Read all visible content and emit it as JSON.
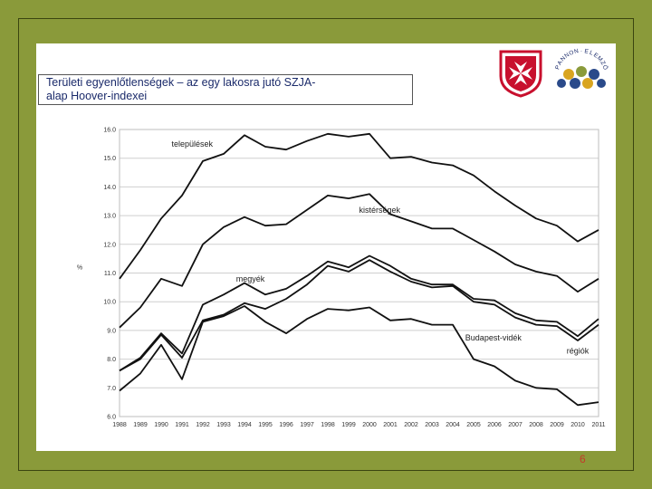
{
  "slide": {
    "title_line1": "Területi egyenlőtlenségek – az egy lakosra jutó SZJA-",
    "title_line2": "alap Hoover-indexei",
    "page_number": "6",
    "logo_arc_text": "PANNON·ELEMZŐ",
    "logo_arc_letters": [
      "P",
      "A",
      "N",
      "N",
      "O",
      "N",
      "·",
      "E",
      "L",
      "E",
      "M",
      "Z",
      "Ő"
    ],
    "colors": {
      "background": "#8a9a3a",
      "slide": "#ffffff",
      "line": "#111111",
      "shield_red": "#c8102e"
    }
  },
  "chart_data": {
    "type": "line",
    "ylabel": "%",
    "ylim": [
      6.0,
      16.0
    ],
    "yticks": [
      "6.0",
      "7.0",
      "8.0",
      "9.0",
      "10.0",
      "11.0",
      "12.0",
      "13.0",
      "14.0",
      "15.0",
      "16.0"
    ],
    "ytick_values": [
      6,
      7,
      8,
      9,
      10,
      11,
      12,
      13,
      14,
      15,
      16
    ],
    "categories": [
      "1988",
      "1989",
      "1990",
      "1991",
      "1992",
      "1993",
      "1994",
      "1995",
      "1996",
      "1997",
      "1998",
      "1999",
      "2000",
      "2001",
      "2002",
      "2003",
      "2004",
      "2005",
      "2006",
      "2007",
      "2008",
      "2009",
      "2010",
      "2011"
    ],
    "grid": true,
    "series": [
      {
        "name": "települések",
        "values": [
          10.8,
          11.8,
          12.9,
          13.7,
          14.9,
          15.15,
          15.8,
          15.4,
          15.3,
          15.6,
          15.85,
          15.75,
          15.85,
          15.0,
          15.05,
          14.85,
          14.75,
          14.4,
          13.85,
          13.35,
          12.9,
          12.65,
          12.1,
          12.5
        ]
      },
      {
        "name": "kistérségek",
        "values": [
          9.1,
          9.8,
          10.8,
          10.55,
          12.0,
          12.6,
          12.95,
          12.65,
          12.7,
          13.2,
          13.7,
          13.6,
          13.75,
          13.05,
          12.8,
          12.55,
          12.55,
          12.15,
          11.75,
          11.3,
          11.05,
          10.9,
          10.35,
          10.8
        ]
      },
      {
        "name": "megyék",
        "values": [
          7.6,
          8.05,
          8.9,
          8.2,
          9.9,
          10.25,
          10.65,
          10.25,
          10.45,
          10.9,
          11.4,
          11.2,
          11.6,
          11.25,
          10.8,
          10.6,
          10.6,
          10.1,
          10.05,
          9.6,
          9.35,
          9.3,
          8.8,
          9.4
        ]
      },
      {
        "name": "régiók",
        "values": [
          7.6,
          8.0,
          8.85,
          8.05,
          9.35,
          9.55,
          9.95,
          9.75,
          10.1,
          10.6,
          11.25,
          11.05,
          11.45,
          11.05,
          10.7,
          10.5,
          10.55,
          10.0,
          9.9,
          9.45,
          9.2,
          9.15,
          8.65,
          9.2
        ]
      },
      {
        "name": "Budapest-vidék",
        "values": [
          6.9,
          7.5,
          8.5,
          7.3,
          9.3,
          9.5,
          9.85,
          9.3,
          8.9,
          9.4,
          9.75,
          9.7,
          9.8,
          9.35,
          9.4,
          9.2,
          9.2,
          8.0,
          7.75,
          7.25,
          7.0,
          6.95,
          6.4,
          6.5
        ]
      }
    ]
  }
}
